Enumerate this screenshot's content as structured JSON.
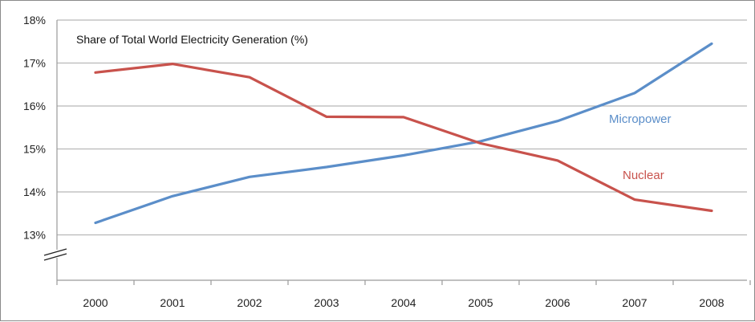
{
  "chart_data": {
    "type": "line",
    "title": "Share of Total World Electricity Generation (%)",
    "categories": [
      "2000",
      "2001",
      "2002",
      "2003",
      "2004",
      "2005",
      "2006",
      "2007",
      "2008"
    ],
    "y_ticks": [
      "13%",
      "14%",
      "15%",
      "16%",
      "17%",
      "18%"
    ],
    "ylim": [
      12,
      18
    ],
    "y_axis_break": true,
    "grid": true,
    "legend": "inline labels",
    "series": [
      {
        "name": "Micropower",
        "color": "#5b8ec9",
        "values": [
          13.28,
          13.9,
          14.35,
          14.58,
          14.85,
          15.18,
          15.65,
          16.3,
          17.45
        ]
      },
      {
        "name": "Nuclear",
        "color": "#c8524c",
        "values": [
          16.78,
          16.98,
          16.67,
          15.75,
          15.74,
          15.13,
          14.73,
          13.82,
          13.56
        ]
      }
    ]
  }
}
